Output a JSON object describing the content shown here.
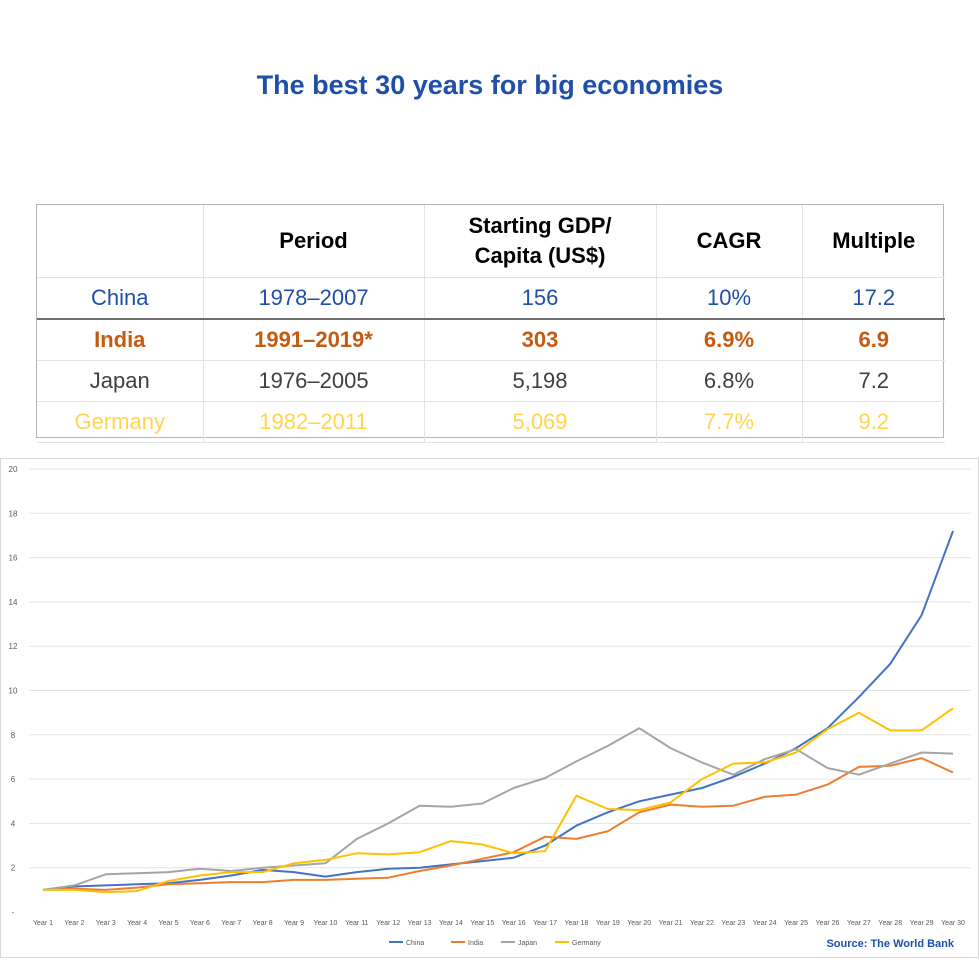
{
  "title": "The best 30 years for big economies",
  "table": {
    "headers": [
      "",
      "Period",
      "Starting GDP/ Capita (US$)",
      "CAGR",
      "Multiple"
    ],
    "rows": [
      {
        "country": "China",
        "period": "1978–2007",
        "start_gdp": "156",
        "cagr": "10%",
        "multiple": "17.2",
        "color": "#1f4fa8"
      },
      {
        "country": "India",
        "period": "1991–2019*",
        "start_gdp": "303",
        "cagr": "6.9%",
        "multiple": "6.9",
        "color": "#c55a11"
      },
      {
        "country": "Japan",
        "period": "1976–2005",
        "start_gdp": "5,198",
        "cagr": "6.8%",
        "multiple": "7.2",
        "color": "#404040"
      },
      {
        "country": "Germany",
        "period": "1982–2011",
        "start_gdp": "5,069",
        "cagr": "7.7%",
        "multiple": "9.2",
        "color": "#ffd54f"
      }
    ]
  },
  "source": "Source: The World Bank",
  "chart_data": {
    "type": "line",
    "title": "",
    "xlabel": "",
    "ylabel": "",
    "ylim": [
      0,
      20
    ],
    "yticks": [
      "-",
      "2",
      "4",
      "6",
      "8",
      "10",
      "12",
      "14",
      "16",
      "18",
      "20"
    ],
    "grid": true,
    "legend": "bottom",
    "categories": [
      "Year 1",
      "Year 2",
      "Year 3",
      "Year 4",
      "Year 5",
      "Year 6",
      "Year 7",
      "Year 8",
      "Year 9",
      "Year 10",
      "Year 11",
      "Year 12",
      "Year 13",
      "Year 14",
      "Year 15",
      "Year 16",
      "Year 17",
      "Year 18",
      "Year 19",
      "Year 20",
      "Year 21",
      "Year 22",
      "Year 23",
      "Year 24",
      "Year 25",
      "Year 26",
      "Year 27",
      "Year 28",
      "Year 29",
      "Year 30"
    ],
    "series": [
      {
        "name": "China",
        "color": "#4472c4",
        "values": [
          1.0,
          1.15,
          1.2,
          1.25,
          1.3,
          1.45,
          1.65,
          1.9,
          1.8,
          1.6,
          1.8,
          1.95,
          2.0,
          2.15,
          2.3,
          2.45,
          3.0,
          3.9,
          4.5,
          5.0,
          5.3,
          5.6,
          6.1,
          6.7,
          7.4,
          8.3,
          9.7,
          11.2,
          13.4,
          17.2
        ]
      },
      {
        "name": "India",
        "color": "#ed7d31",
        "values": [
          1.0,
          1.05,
          1.0,
          1.1,
          1.25,
          1.3,
          1.35,
          1.35,
          1.45,
          1.45,
          1.5,
          1.55,
          1.85,
          2.1,
          2.4,
          2.7,
          3.4,
          3.3,
          3.65,
          4.5,
          4.85,
          4.75,
          4.8,
          5.2,
          5.3,
          5.75,
          6.55,
          6.6,
          6.95,
          6.3
        ]
      },
      {
        "name": "Japan",
        "color": "#a5a5a5",
        "values": [
          1.0,
          1.2,
          1.7,
          1.75,
          1.8,
          1.95,
          1.85,
          2.0,
          2.1,
          2.2,
          3.3,
          4.0,
          4.8,
          4.75,
          4.9,
          5.6,
          6.05,
          6.8,
          7.5,
          8.3,
          7.4,
          6.75,
          6.2,
          6.9,
          7.35,
          6.5,
          6.2,
          6.7,
          7.2,
          7.15
        ]
      },
      {
        "name": "Germany",
        "color": "#ffc000",
        "values": [
          1.0,
          1.0,
          0.9,
          0.95,
          1.4,
          1.65,
          1.8,
          1.8,
          2.2,
          2.35,
          2.65,
          2.6,
          2.7,
          3.2,
          3.05,
          2.65,
          2.75,
          5.25,
          4.65,
          4.6,
          4.95,
          6.0,
          6.7,
          6.75,
          7.2,
          8.25,
          9.0,
          8.2,
          8.2,
          9.2
        ]
      }
    ]
  }
}
